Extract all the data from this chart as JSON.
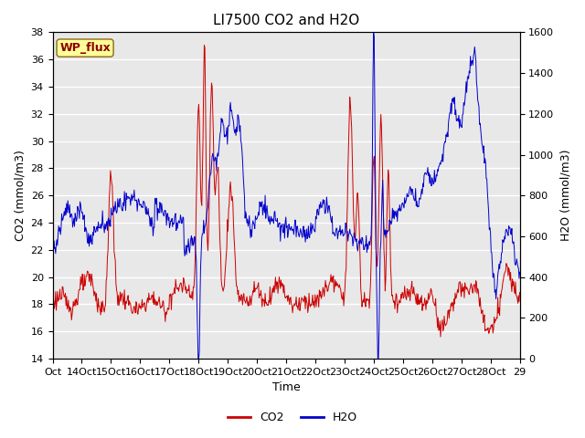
{
  "title": "LI7500 CO2 and H2O",
  "xlabel": "Time",
  "ylabel_left": "CO2 (mmol/m3)",
  "ylabel_right": "H2O (mmol/m3)",
  "annotation": "WP_flux",
  "annotation_color": "#8B0000",
  "annotation_bg": "#FFFF99",
  "co2_color": "#CC0000",
  "h2o_color": "#0000CC",
  "ylim_left": [
    14,
    38
  ],
  "ylim_right": [
    0,
    1600
  ],
  "yticks_left": [
    14,
    16,
    18,
    20,
    22,
    24,
    26,
    28,
    30,
    32,
    34,
    36,
    38
  ],
  "yticks_right": [
    0,
    200,
    400,
    600,
    800,
    1000,
    1200,
    1400,
    1600
  ],
  "xtick_labels": [
    "Oct",
    "14Oct",
    "15Oct",
    "16Oct",
    "17Oct",
    "18Oct",
    "19Oct",
    "20Oct",
    "21Oct",
    "22Oct",
    "23Oct",
    "24Oct",
    "25Oct",
    "26Oct",
    "27Oct",
    "28Oct",
    "29"
  ],
  "background_color": "#E8E8E8",
  "grid_color": "#FFFFFF",
  "fig_bg": "#FFFFFF",
  "title_fontsize": 11,
  "axis_fontsize": 9,
  "tick_fontsize": 8,
  "legend_fontsize": 9
}
